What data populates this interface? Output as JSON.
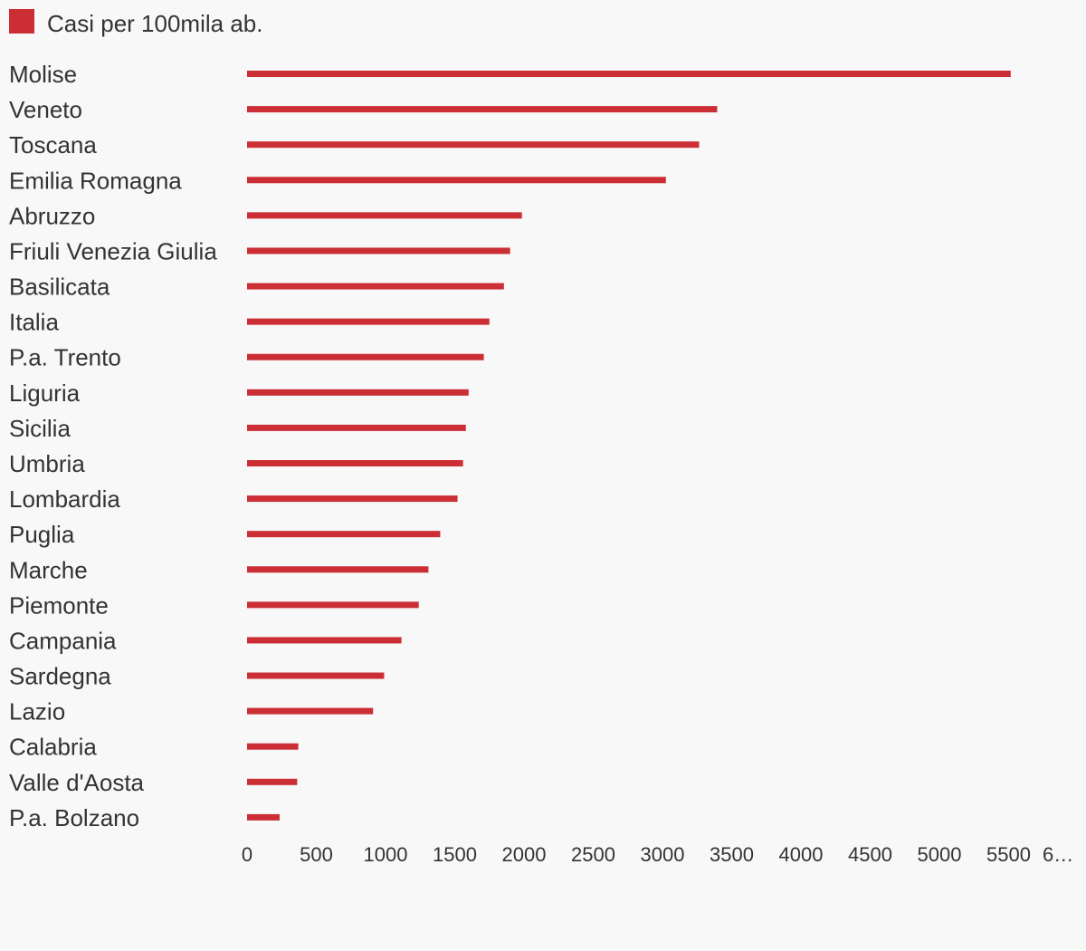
{
  "chart_data": {
    "type": "bar",
    "orientation": "horizontal",
    "legend": {
      "position": "top-left",
      "entries": [
        {
          "label": "Casi per 100mila ab.",
          "color": "#cc2e35"
        }
      ]
    },
    "series": [
      {
        "name": "Casi per 100mila ab.",
        "color": "#cc2e35",
        "values": [
          5515,
          3395,
          3265,
          3025,
          1985,
          1900,
          1855,
          1750,
          1710,
          1600,
          1580,
          1560,
          1520,
          1395,
          1310,
          1240,
          1115,
          990,
          910,
          370,
          362,
          235
        ]
      }
    ],
    "categories": [
      "Molise",
      "Veneto",
      "Toscana",
      "Emilia Romagna",
      "Abruzzo",
      "Friuli Venezia Giulia",
      "Basilicata",
      "Italia",
      "P.a. Trento",
      "Liguria",
      "Sicilia",
      "Umbria",
      "Lombardia",
      "Puglia",
      "Marche",
      "Piemonte",
      "Campania",
      "Sardegna",
      "Lazio",
      "Calabria",
      "Valle d'Aosta",
      "P.a. Bolzano"
    ],
    "x_ticks": [
      "0",
      "500",
      "1000",
      "1500",
      "2000",
      "2500",
      "3000",
      "3500",
      "4000",
      "4500",
      "5000",
      "5500",
      "6…"
    ],
    "xlim": [
      0,
      6000
    ],
    "grid": false
  }
}
